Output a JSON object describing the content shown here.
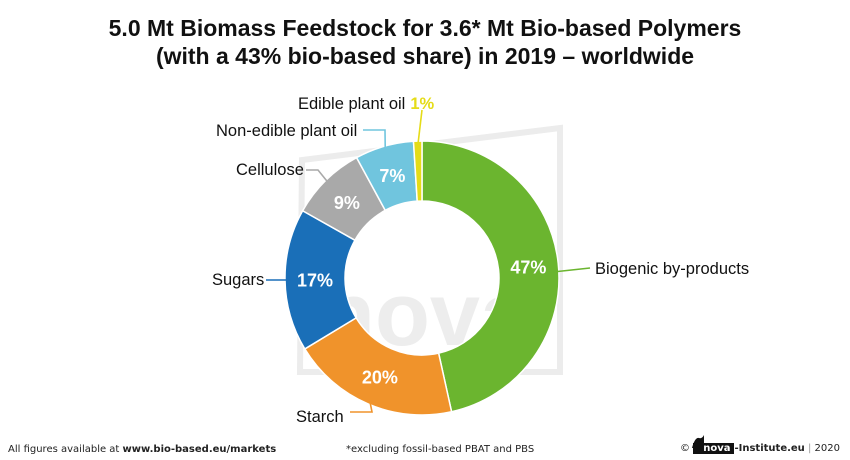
{
  "title_line1": "5.0 Mt Biomass Feedstock for 3.6* Mt Bio-based Polymers",
  "title_line2": "(with a 43% bio-based share) in 2019 – worldwide",
  "watermark": "nova",
  "chart_data": {
    "type": "pie",
    "donut": true,
    "series": [
      {
        "label": "Biogenic by-products",
        "value": 47,
        "pct_label": "47%",
        "color": "#6bb52f"
      },
      {
        "label": "Starch",
        "value": 20,
        "pct_label": "20%",
        "color": "#f0932b"
      },
      {
        "label": "Sugars",
        "value": 17,
        "pct_label": "17%",
        "color": "#1a6fb8"
      },
      {
        "label": "Cellulose",
        "value": 9,
        "pct_label": "9%",
        "color": "#a9a9a9"
      },
      {
        "label": "Non-edible plant oil",
        "value": 7,
        "pct_label": "7%",
        "color": "#70c5de"
      },
      {
        "label": "Edible plant oil",
        "value": 1,
        "pct_label": "1%",
        "color": "#e5dc18"
      }
    ]
  },
  "footer": {
    "left_prefix": "All figures available at ",
    "left_link": "www.bio-based.eu/markets",
    "note": "*excluding fossil-based PBAT and PBS",
    "copyright": "©",
    "brand": "nova",
    "brand_suffix": "-Institute.eu",
    "separator": "|",
    "year": "2020"
  }
}
